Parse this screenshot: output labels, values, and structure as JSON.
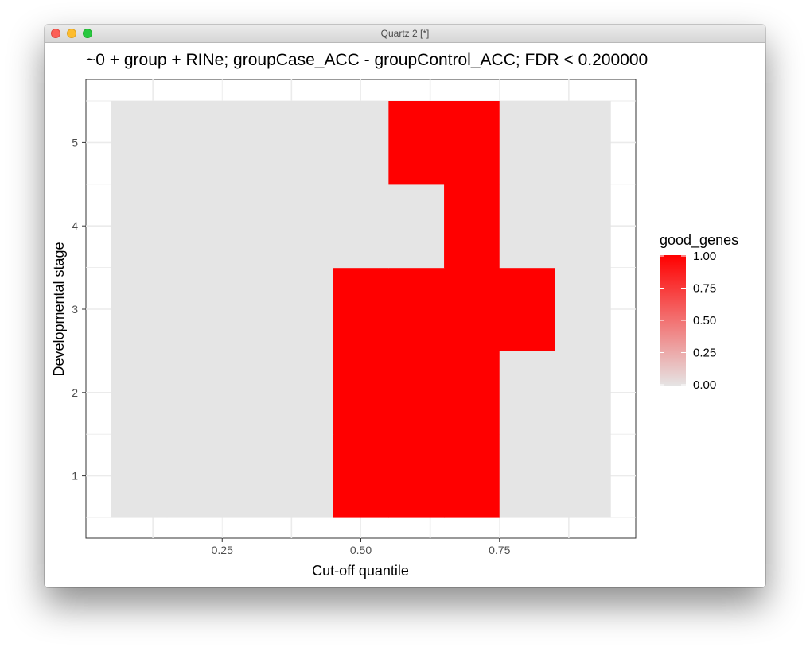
{
  "window": {
    "title": "Quartz 2 [*]"
  },
  "chart_data": {
    "type": "heatmap",
    "title": "~0 + group + RINe; groupCase_ACC - groupControl_ACC; FDR < 0.200000",
    "xlabel": "Cut-off quantile",
    "ylabel": "Developmental stage",
    "x": [
      0.1,
      0.2,
      0.3,
      0.4,
      0.5,
      0.6,
      0.7,
      0.8,
      0.9
    ],
    "y": [
      1,
      2,
      3,
      4,
      5
    ],
    "x_ticks": [
      "0.25",
      "0.50",
      "0.75"
    ],
    "y_ticks": [
      "1",
      "2",
      "3",
      "4",
      "5"
    ],
    "xlim": [
      0.05,
      0.95
    ],
    "ylim": [
      0.5,
      5.5
    ],
    "values": [
      [
        0,
        0,
        0,
        0,
        1,
        1,
        1,
        0,
        0
      ],
      [
        0,
        0,
        0,
        0,
        1,
        1,
        1,
        0,
        0
      ],
      [
        0,
        0,
        0,
        0,
        1,
        1,
        1,
        1,
        0
      ],
      [
        0,
        0,
        0,
        0,
        0,
        0,
        1,
        0,
        0
      ],
      [
        0,
        0,
        0,
        0,
        0,
        1,
        1,
        0,
        0
      ]
    ],
    "legend": {
      "title": "good_genes",
      "labels": [
        "1.00",
        "0.75",
        "0.50",
        "0.25",
        "0.00"
      ],
      "position": "right"
    },
    "colors": {
      "low": "#e5e5e5",
      "high": "#ff0000"
    },
    "grid": true
  }
}
